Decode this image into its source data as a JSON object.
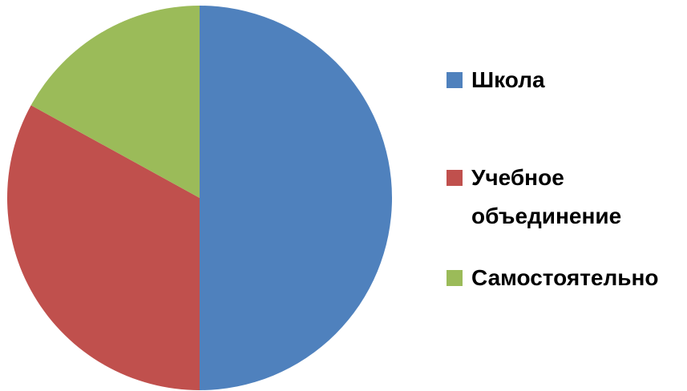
{
  "chart_data": {
    "type": "pie",
    "categories": [
      "Школа",
      "Учебное объединение",
      "Самостоятельно"
    ],
    "values": [
      50,
      33,
      17
    ],
    "colors": [
      "#4f81bd",
      "#c0504d",
      "#9bbb59"
    ],
    "legend": "right"
  }
}
